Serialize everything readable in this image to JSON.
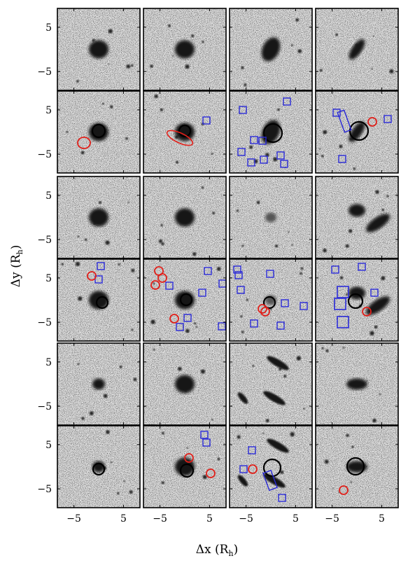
{
  "figure": {
    "xlabel": "Δx (R",
    "xlabel_sub": "h",
    "xlabel_close": ")",
    "ylabel": "Δy (R",
    "ylabel_sub": "h",
    "ylabel_close": ")",
    "y_ticks": [
      "5",
      "−5"
    ],
    "x_ticks": [
      "−5",
      "5"
    ],
    "grid": {
      "rows": 6,
      "cols": 4
    },
    "colors": {
      "background": "#ffffff",
      "noise_base": "#dcdcdc",
      "source": "#141414",
      "target_circle": "#000000",
      "red_marker": "#e0201a",
      "blue_marker": "#2a2ad8",
      "frame": "#000000"
    },
    "panels": [
      {
        "type": "image",
        "galaxy": "round"
      },
      {
        "type": "image",
        "galaxy": "round"
      },
      {
        "type": "image",
        "galaxy": "elongated"
      },
      {
        "type": "image",
        "galaxy": "tilted"
      },
      {
        "type": "annotated",
        "markers": "red1"
      },
      {
        "type": "annotated",
        "markers": "red-ellipse-blue1"
      },
      {
        "type": "annotated",
        "markers": "blue-many"
      },
      {
        "type": "annotated",
        "markers": "blue-red-tilted"
      },
      {
        "type": "image",
        "galaxy": "round"
      },
      {
        "type": "image",
        "galaxy": "round"
      },
      {
        "type": "image",
        "galaxy": "faint"
      },
      {
        "type": "image",
        "galaxy": "pair"
      },
      {
        "type": "annotated",
        "markers": "blue2-red1"
      },
      {
        "type": "annotated",
        "markers": "mixed-many"
      },
      {
        "type": "annotated",
        "markers": "blue-cluster"
      },
      {
        "type": "annotated",
        "markers": "blue-big-squares"
      },
      {
        "type": "image",
        "galaxy": "small"
      },
      {
        "type": "image",
        "galaxy": "round"
      },
      {
        "type": "image",
        "galaxy": "streaks"
      },
      {
        "type": "image",
        "galaxy": "compact"
      },
      {
        "type": "annotated",
        "markers": "none"
      },
      {
        "type": "annotated",
        "markers": "blue2-red2"
      },
      {
        "type": "annotated",
        "markers": "blue-rect"
      },
      {
        "type": "annotated",
        "markers": "red-low"
      }
    ]
  }
}
